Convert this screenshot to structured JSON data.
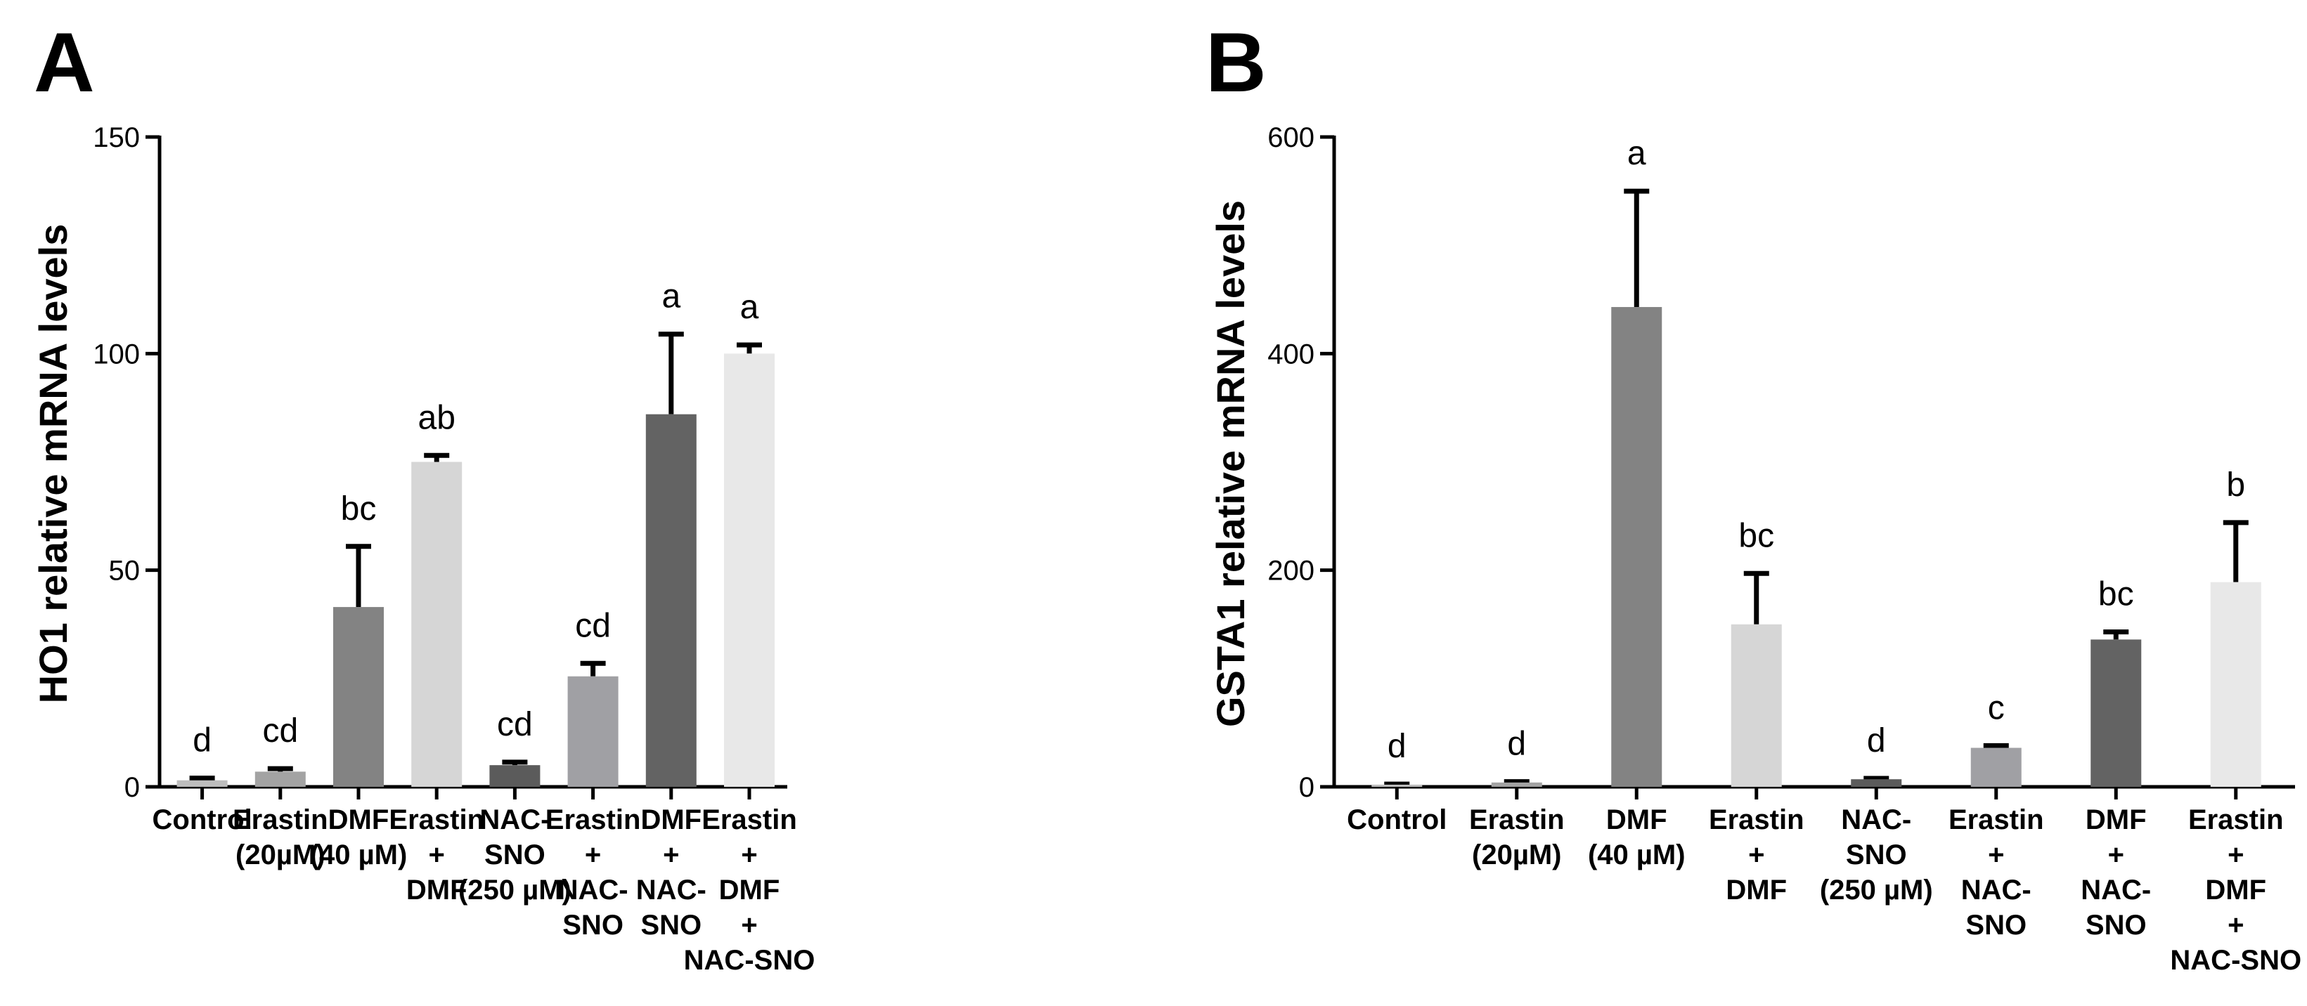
{
  "colors": {
    "axis": "#000000",
    "error_bar": "#000000",
    "bar_palette": [
      "#bdbdbd",
      "#a3a3a3",
      "#838383",
      "#d6d6d6",
      "#5b5b5b",
      "#a0a0a4",
      "#636363",
      "#e8e8e8"
    ]
  },
  "chart_data": [
    {
      "panel": "A",
      "type": "bar",
      "ylabel": "HO1 relative mRNA levels",
      "ylim": [
        0,
        150
      ],
      "yticks": [
        0,
        50,
        100,
        150
      ],
      "categories": [
        [
          "Control"
        ],
        [
          "Erastin",
          "(20µM)"
        ],
        [
          "DMF",
          "(40 µM)"
        ],
        [
          "Erastin",
          "+",
          "DMF"
        ],
        [
          "NAC-",
          "SNO",
          "(250 µM)"
        ],
        [
          "Erastin",
          "+",
          "NAC-",
          "SNO"
        ],
        [
          "DMF",
          "+",
          "NAC-",
          "SNO"
        ],
        [
          "Erastin",
          "+",
          "DMF",
          "+",
          "NAC-SNO"
        ]
      ],
      "values": [
        1.5,
        3.5,
        41.5,
        75,
        5,
        25.5,
        86,
        100
      ],
      "errors": [
        0.5,
        0.7,
        14,
        1.5,
        0.7,
        3,
        18.5,
        2
      ],
      "significance": [
        "d",
        "cd",
        "bc",
        "ab",
        "cd",
        "cd",
        "a",
        "a"
      ]
    },
    {
      "panel": "B",
      "type": "bar",
      "ylabel": "GSTA1 relative mRNA levels",
      "ylim": [
        0,
        600
      ],
      "yticks": [
        0,
        200,
        400,
        600
      ],
      "categories": [
        [
          "Control"
        ],
        [
          "Erastin",
          "(20µM)"
        ],
        [
          "DMF",
          "(40 µM)"
        ],
        [
          "Erastin",
          "+",
          "DMF"
        ],
        [
          "NAC-",
          "SNO",
          "(250 µM)"
        ],
        [
          "Erastin",
          "+",
          "NAC-",
          "SNO"
        ],
        [
          "DMF",
          "+",
          "NAC-",
          "SNO"
        ],
        [
          "Erastin",
          "+",
          "DMF",
          "+",
          "NAC-SNO"
        ]
      ],
      "values": [
        2,
        4,
        443,
        150,
        7,
        36,
        136,
        189
      ],
      "errors": [
        0.5,
        0.8,
        107,
        47,
        0.8,
        2,
        7,
        55
      ],
      "significance": [
        "d",
        "d",
        "a",
        "bc",
        "d",
        "c",
        "bc",
        "b"
      ]
    }
  ]
}
